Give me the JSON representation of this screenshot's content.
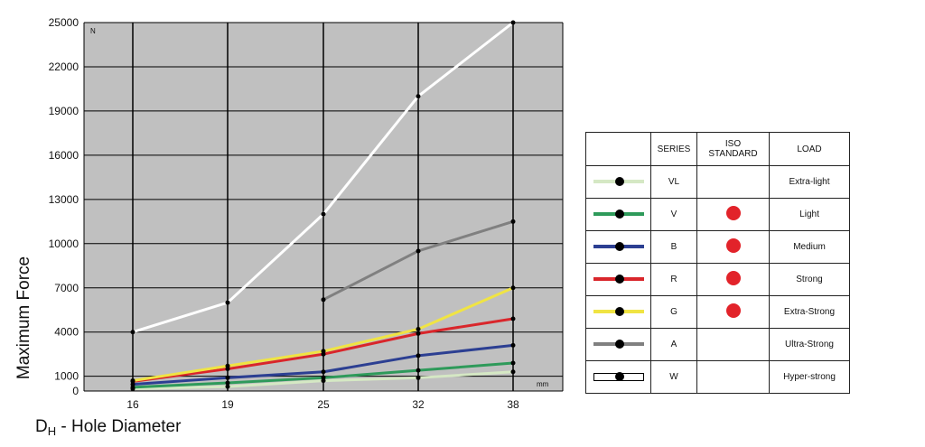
{
  "chart_data": {
    "type": "line",
    "ylabel": "Maximum Force",
    "xlabel_main": "D",
    "xlabel_sub": "H",
    "xlabel_rest": " - Hole Diameter",
    "y_unit": "N",
    "x_unit": "mm",
    "x": [
      "16",
      "19",
      "25",
      "32",
      "38"
    ],
    "y_ticks": [
      "0",
      "1000",
      "4000",
      "7000",
      "10000",
      "13000",
      "16000",
      "19000",
      "22000",
      "25000"
    ],
    "ylim": [
      0,
      25000
    ],
    "grid": true,
    "plot_background": "#c0c0c0",
    "series": [
      {
        "name": "VL",
        "color": "#d5e8c4",
        "values": [
          150,
          300,
          700,
          900,
          1300
        ]
      },
      {
        "name": "V",
        "color": "#2e9a5a",
        "values": [
          250,
          550,
          900,
          1400,
          1900
        ]
      },
      {
        "name": "B",
        "color": "#2c3f92",
        "values": [
          450,
          900,
          1300,
          2400,
          3100
        ]
      },
      {
        "name": "R",
        "color": "#d9262b",
        "values": [
          650,
          1500,
          2500,
          3900,
          4900
        ]
      },
      {
        "name": "G",
        "color": "#f0e443",
        "values": [
          700,
          1700,
          2700,
          4200,
          7000
        ]
      },
      {
        "name": "A",
        "color": "#808080",
        "values": [
          null,
          null,
          6200,
          9500,
          11500
        ]
      },
      {
        "name": "W",
        "color": "#ffffff",
        "values": [
          4000,
          6000,
          12000,
          20000,
          25000
        ]
      }
    ]
  },
  "legend": {
    "headers": {
      "series": "SERIES",
      "iso_line1": "ISO",
      "iso_line2": "STANDARD",
      "load": "LOAD"
    },
    "iso_dot_color": "#e2232a",
    "rows": [
      {
        "series": "VL",
        "load": "Extra-light",
        "iso": false,
        "color": "#d5e8c4",
        "outlined": false
      },
      {
        "series": "V",
        "load": "Light",
        "iso": true,
        "color": "#2e9a5a",
        "outlined": false
      },
      {
        "series": "B",
        "load": "Medium",
        "iso": true,
        "color": "#2c3f92",
        "outlined": false
      },
      {
        "series": "R",
        "load": "Strong",
        "iso": true,
        "color": "#d9262b",
        "outlined": false
      },
      {
        "series": "G",
        "load": "Extra-Strong",
        "iso": true,
        "color": "#f0e443",
        "outlined": false
      },
      {
        "series": "A",
        "load": "Ultra-Strong",
        "iso": false,
        "color": "#808080",
        "outlined": false
      },
      {
        "series": "W",
        "load": "Hyper-strong",
        "iso": false,
        "color": "#ffffff",
        "outlined": true
      }
    ]
  }
}
